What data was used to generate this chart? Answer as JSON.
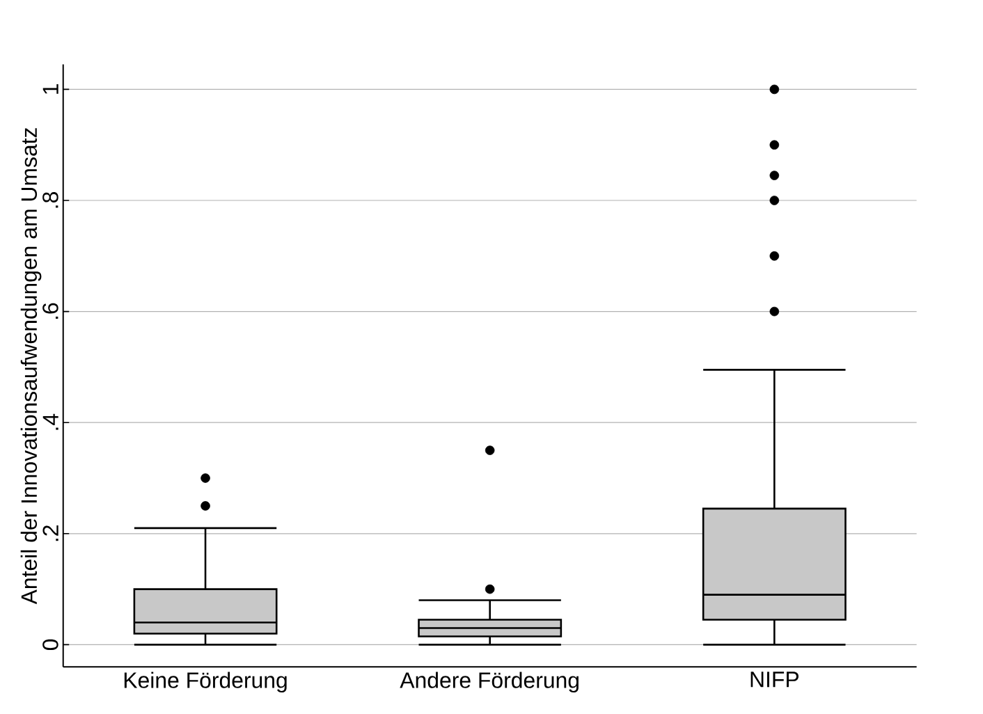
{
  "chart_data": {
    "type": "box",
    "ylabel": "Anteil der Innovationsaufwendungen am Umsatz",
    "categories": [
      "Keine Förderung",
      "Andere Förderung",
      "NIFP"
    ],
    "boxes": [
      {
        "low": 0,
        "q1": 0.02,
        "median": 0.04,
        "q3": 0.1,
        "high": 0.21,
        "outliers": [
          0.25,
          0.3
        ]
      },
      {
        "low": 0,
        "q1": 0.015,
        "median": 0.03,
        "q3": 0.045,
        "high": 0.08,
        "outliers": [
          0.1,
          0.35
        ]
      },
      {
        "low": 0,
        "q1": 0.045,
        "median": 0.09,
        "q3": 0.245,
        "high": 0.495,
        "outliers": [
          0.6,
          0.7,
          0.8,
          0.845,
          0.9,
          1
        ]
      }
    ],
    "color": "#c8c8c8",
    "ylim": [
      -0.04,
      1.045
    ],
    "yticks": [
      0,
      {
        "value": 0.2,
        "label": ".2"
      },
      {
        "value": 0.4,
        "label": ".4"
      },
      {
        "value": 0.6,
        "label": ".6"
      },
      {
        "value": 0.8,
        "label": ".8"
      },
      1
    ],
    "grid": "y",
    "marker": "circle"
  }
}
